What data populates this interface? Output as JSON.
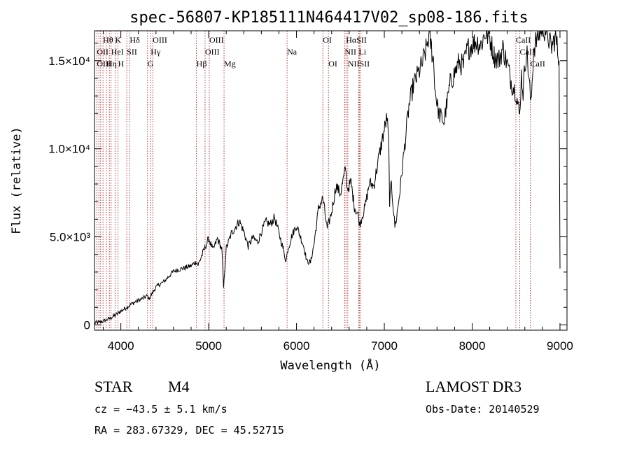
{
  "chart_data": {
    "type": "line",
    "title": "spec-56807-KP185111N464417V02_sp08-186.fits",
    "xlabel": "Wavelength (Å)",
    "ylabel": "Flux (relative)",
    "xlim": [
      3700,
      9080
    ],
    "ylim": [
      -300,
      16700
    ],
    "grid": false,
    "legend": "none",
    "x_ticks": [
      {
        "value": 4000,
        "label": "4000"
      },
      {
        "value": 5000,
        "label": "5000"
      },
      {
        "value": 6000,
        "label": "6000"
      },
      {
        "value": 7000,
        "label": "7000"
      },
      {
        "value": 8000,
        "label": "8000"
      },
      {
        "value": 9000,
        "label": "9000"
      }
    ],
    "y_ticks": [
      {
        "value": 0,
        "label": "0"
      },
      {
        "value": 5000,
        "label": "5.0×10³"
      },
      {
        "value": 10000,
        "label": "1.0×10⁴"
      },
      {
        "value": 15000,
        "label": "1.5×10⁴"
      }
    ],
    "series": [
      {
        "name": "spectrum",
        "x": [
          3700,
          3760,
          3820,
          3880,
          3940,
          4000,
          4060,
          4120,
          4180,
          4240,
          4300,
          4320,
          4400,
          4500,
          4600,
          4700,
          4800,
          4860,
          4880,
          4950,
          5000,
          5050,
          5100,
          5150,
          5170,
          5200,
          5260,
          5350,
          5400,
          5450,
          5500,
          5560,
          5600,
          5650,
          5700,
          5750,
          5800,
          5850,
          5880,
          5900,
          5950,
          6000,
          6080,
          6120,
          6160,
          6200,
          6250,
          6300,
          6350,
          6400,
          6450,
          6500,
          6560,
          6580,
          6620,
          6660,
          6700,
          6720,
          6780,
          6830,
          6880,
          6930,
          6980,
          7030,
          7050,
          7060,
          7080,
          7120,
          7140,
          7180,
          7230,
          7280,
          7330,
          7380,
          7430,
          7480,
          7500,
          7520,
          7560,
          7580,
          7620,
          7660,
          7680,
          7700,
          7750,
          7800,
          7850,
          7900,
          7950,
          8000,
          8050,
          8100,
          8150,
          8200,
          8250,
          8300,
          8350,
          8400,
          8450,
          8500,
          8530,
          8540,
          8560,
          8580,
          8600,
          8620,
          8650,
          8670,
          8700,
          8750,
          8800,
          8850,
          8900,
          8950,
          8990,
          9000
        ],
        "y": [
          100,
          150,
          250,
          380,
          560,
          780,
          980,
          1180,
          1350,
          1480,
          1650,
          1480,
          2150,
          2500,
          3050,
          3200,
          3350,
          3600,
          3400,
          4300,
          4900,
          4250,
          4900,
          4300,
          2100,
          4350,
          5200,
          5900,
          5300,
          4450,
          4950,
          4700,
          5300,
          5850,
          5700,
          6100,
          5200,
          4300,
          3600,
          4250,
          5100,
          5650,
          4500,
          3600,
          3550,
          4600,
          6600,
          7200,
          5450,
          6400,
          7900,
          7450,
          8900,
          7700,
          8100,
          6700,
          6250,
          5700,
          6700,
          8050,
          7900,
          9300,
          10600,
          11800,
          10400,
          7000,
          8000,
          5600,
          6100,
          7700,
          10100,
          12400,
          13600,
          14200,
          14800,
          15700,
          16300,
          16200,
          15000,
          13300,
          12000,
          11700,
          11500,
          12200,
          13700,
          14300,
          14900,
          14700,
          15700,
          15900,
          16100,
          15900,
          16600,
          16300,
          15300,
          15000,
          15700,
          14800,
          13700,
          13200,
          12200,
          11800,
          14200,
          13200,
          14700,
          15700,
          13800,
          12400,
          15700,
          16400,
          16900,
          16700,
          15700,
          16400,
          15000,
          3200
        ]
      }
    ],
    "lines": [
      {
        "name": "Hθ",
        "wavelength": 3797,
        "row": 0
      },
      {
        "name": "K",
        "wavelength": 3934,
        "row": 0
      },
      {
        "name": "Hδ",
        "wavelength": 4102,
        "row": 0
      },
      {
        "name": "OIII",
        "wavelength": 4363,
        "row": 0
      },
      {
        "name": "OIII",
        "wavelength": 5007,
        "row": 0
      },
      {
        "name": "OI",
        "wavelength": 6300,
        "row": 0
      },
      {
        "name": "HαSII",
        "wavelength": 6563,
        "row": 0
      },
      {
        "name": "CaII",
        "wavelength": 8498,
        "row": 0
      },
      {
        "name": "OII",
        "wavelength": 3727,
        "row": 1
      },
      {
        "name": "HeI",
        "wavelength": 3889,
        "row": 1
      },
      {
        "name": "SII",
        "wavelength": 4068,
        "row": 1
      },
      {
        "name": "Hγ",
        "wavelength": 4340,
        "row": 1
      },
      {
        "name": "OIII",
        "wavelength": 4959,
        "row": 1
      },
      {
        "name": "Na",
        "wavelength": 5893,
        "row": 1
      },
      {
        "name": "NII",
        "wavelength": 6548,
        "row": 1
      },
      {
        "name": "Li",
        "wavelength": 6708,
        "row": 1
      },
      {
        "name": "CaII",
        "wavelength": 8542,
        "row": 1
      },
      {
        "name": "OIII",
        "wavelength": 3727,
        "row": 2
      },
      {
        "name": "Hη",
        "wavelength": 3835,
        "row": 2
      },
      {
        "name": "H",
        "wavelength": 3968,
        "row": 2
      },
      {
        "name": "G",
        "wavelength": 4304,
        "row": 2
      },
      {
        "name": "Hβ",
        "wavelength": 4861,
        "row": 2
      },
      {
        "name": "Mg",
        "wavelength": 5175,
        "row": 2
      },
      {
        "name": "OI",
        "wavelength": 6364,
        "row": 2
      },
      {
        "name": "NIISII",
        "wavelength": 6584,
        "row": 2
      },
      {
        "name": "CaII",
        "wavelength": 8662,
        "row": 2
      }
    ],
    "marker_lines": [
      3727,
      3750,
      3770,
      3797,
      3835,
      3869,
      3889,
      3934,
      3968,
      4068,
      4102,
      4304,
      4340,
      4363,
      4861,
      4959,
      5007,
      5175,
      5893,
      6300,
      6364,
      6548,
      6563,
      6584,
      6708,
      6716,
      6731,
      8498,
      8542,
      8662
    ]
  },
  "footer": {
    "object_class": "STAR",
    "subclass": "M4",
    "survey": "LAMOST DR3",
    "velocity": "cz = −43.5 ± 5.1 km/s",
    "obs_date": "Obs-Date: 20140529",
    "coordinates": "RA = 283.67329, DEC =  45.52715"
  }
}
